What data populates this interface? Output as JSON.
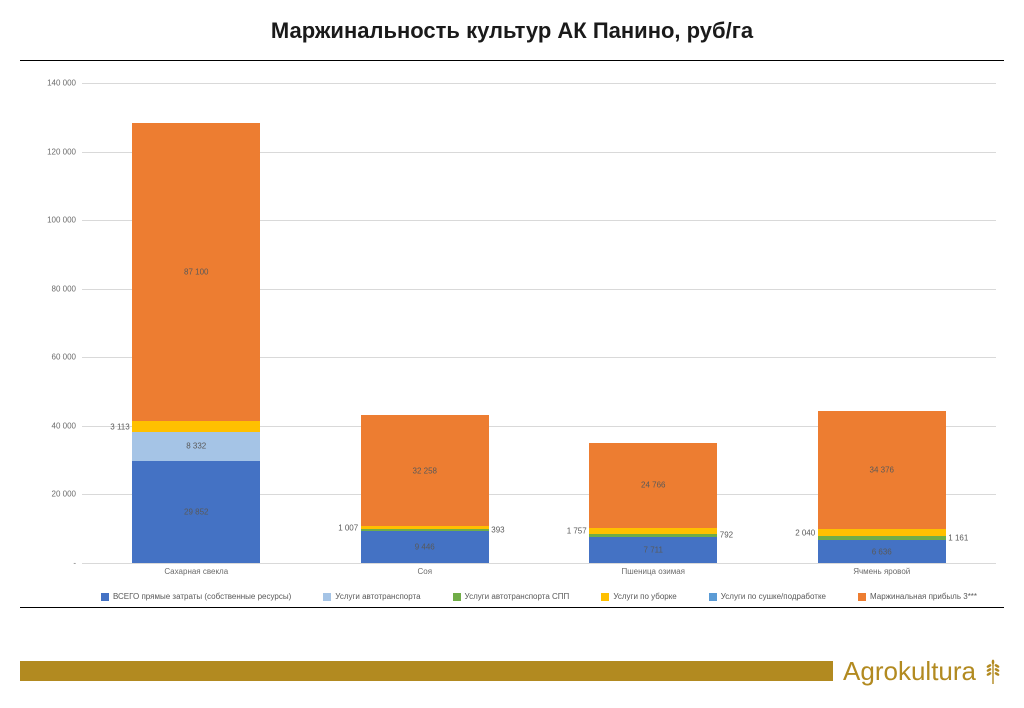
{
  "title": {
    "text": "Маржинальность культур АК Панино, руб/га",
    "fontsize": 22
  },
  "chart": {
    "type": "stacked-bar",
    "background_color": "#ffffff",
    "grid_color": "#d9d9d9",
    "ymin": 0,
    "ymax": 140000,
    "ystep": 20000,
    "tick_fontsize": 8,
    "datalabel_fontsize": 8,
    "categories": [
      {
        "label": "Сахарная свекла"
      },
      {
        "label": "Соя"
      },
      {
        "label": "Пшеница озимая"
      },
      {
        "label": "Ячмень яровой"
      }
    ],
    "series": [
      {
        "key": "direct_costs",
        "label": "ВСЕГО прямые затраты (собственные ресурсы)",
        "color": "#4472c4"
      },
      {
        "key": "transport",
        "label": "Услуги автотранспорта",
        "color": "#a5c4e6"
      },
      {
        "key": "transport_spp",
        "label": "Услуги автотранспорта СПП",
        "color": "#70ad47"
      },
      {
        "key": "harvest",
        "label": "Услуги по уборке",
        "color": "#ffc000"
      },
      {
        "key": "drying",
        "label": "Услуги по сушке/подработке",
        "color": "#5b9bd5"
      },
      {
        "key": "margin",
        "label": "Маржинальная прибыль 3***",
        "color": "#ed7d31"
      }
    ],
    "data": [
      {
        "direct_costs": 29852,
        "transport": 8332,
        "transport_spp": 0,
        "harvest": 3113,
        "drying": 0,
        "margin": 87100,
        "labels": {
          "direct_costs": "29 852",
          "transport": "8 332",
          "harvest": "3 113",
          "margin": "87 100"
        }
      },
      {
        "direct_costs": 9446,
        "transport": 0,
        "transport_spp": 393,
        "harvest": 1007,
        "drying": 0,
        "margin": 32258,
        "labels": {
          "direct_costs": "9 446",
          "harvest": "1 007",
          "transport_spp": "393",
          "margin": "32 258"
        }
      },
      {
        "direct_costs": 7711,
        "transport": 0,
        "transport_spp": 792,
        "harvest": 1757,
        "drying": 0,
        "margin": 24766,
        "labels": {
          "direct_costs": "7 711",
          "harvest": "1 757",
          "transport_spp": "792",
          "margin": "24 766"
        }
      },
      {
        "direct_costs": 6636,
        "transport": 0,
        "transport_spp": 1161,
        "harvest": 2040,
        "drying": 0,
        "margin": 34376,
        "labels": {
          "direct_costs": "6 636",
          "harvest": "2 040",
          "transport_spp": "1 161",
          "margin": "34 376"
        }
      }
    ],
    "yticks": [
      {
        "v": 0,
        "label": "-"
      },
      {
        "v": 20000,
        "label": "20 000"
      },
      {
        "v": 40000,
        "label": "40 000"
      },
      {
        "v": 60000,
        "label": "60 000"
      },
      {
        "v": 80000,
        "label": "80 000"
      },
      {
        "v": 100000,
        "label": "100 000"
      },
      {
        "v": 120000,
        "label": "120 000"
      },
      {
        "v": 140000,
        "label": "140 000"
      }
    ]
  },
  "brand": {
    "name": "Agrokultura",
    "color": "#b28a20",
    "fontsize": 26
  }
}
